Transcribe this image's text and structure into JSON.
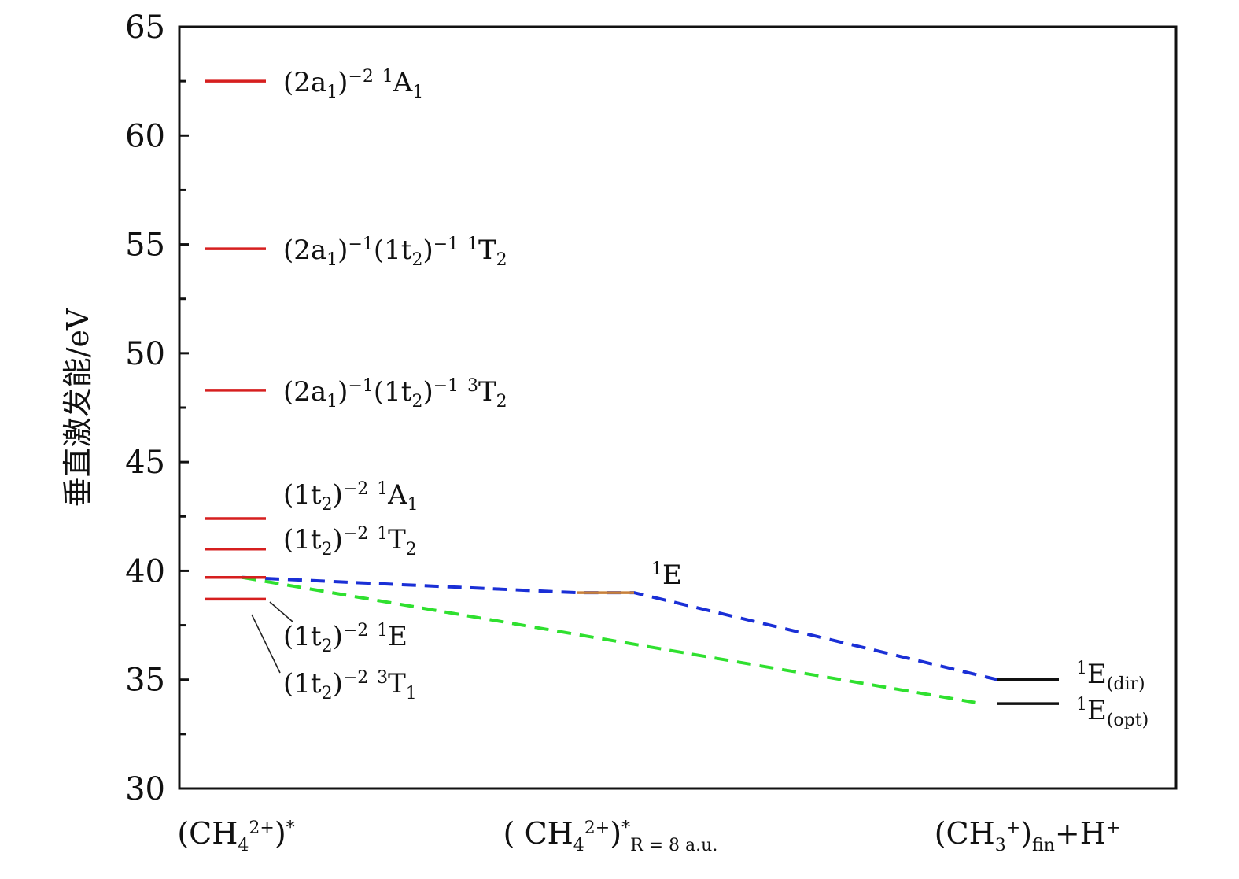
{
  "chart_data": {
    "type": "energy-level-diagram",
    "title": "",
    "ylabel": "垂直激发能/eV",
    "ylim": [
      30,
      65
    ],
    "yticks_major": [
      30,
      35,
      40,
      45,
      50,
      55,
      60,
      65
    ],
    "yticks_minor": [
      32.5,
      37.5,
      42.5,
      47.5,
      52.5,
      57.5,
      62.5
    ],
    "categories": [
      {
        "id": "c0",
        "main": "(CH",
        "sub": "4",
        "sup": "2+",
        "tail": ")",
        "sup2": "*",
        "sub2": ""
      },
      {
        "id": "c1",
        "main": "( CH",
        "sub": "4",
        "sup": "2+",
        "tail": ")",
        "sup2": "*",
        "sub2": "R = 8 a.u."
      },
      {
        "id": "c2",
        "main": "(CH",
        "sub": "3",
        "sup": "+",
        "tail": ")",
        "sup2": "",
        "sub2": "fin",
        "extra": "+H",
        "extra_sup": "+"
      }
    ],
    "levels": [
      {
        "id": "lv-2a1-m2-1A1",
        "col": 0,
        "energy": 62.5,
        "color": "#d61f1f",
        "label": [
          [
            "t",
            "(2a"
          ],
          [
            "sub",
            "1"
          ],
          [
            "t",
            ")"
          ],
          [
            "sup",
            "−2"
          ],
          [
            "t",
            " "
          ],
          [
            "sup",
            "1"
          ],
          [
            "t",
            "A"
          ],
          [
            "sub",
            "1"
          ]
        ]
      },
      {
        "id": "lv-2a1-1t2-1T2",
        "col": 0,
        "energy": 54.8,
        "color": "#d61f1f",
        "label": [
          [
            "t",
            "(2a"
          ],
          [
            "sub",
            "1"
          ],
          [
            "t",
            ")"
          ],
          [
            "sup",
            "−1"
          ],
          [
            "t",
            "(1t"
          ],
          [
            "sub",
            "2"
          ],
          [
            "t",
            ")"
          ],
          [
            "sup",
            "−1"
          ],
          [
            "t",
            " "
          ],
          [
            "sup",
            "1"
          ],
          [
            "t",
            "T"
          ],
          [
            "sub",
            "2"
          ]
        ]
      },
      {
        "id": "lv-2a1-1t2-3T2",
        "col": 0,
        "energy": 48.3,
        "color": "#d61f1f",
        "label": [
          [
            "t",
            "(2a"
          ],
          [
            "sub",
            "1"
          ],
          [
            "t",
            ")"
          ],
          [
            "sup",
            "−1"
          ],
          [
            "t",
            "(1t"
          ],
          [
            "sub",
            "2"
          ],
          [
            "t",
            ")"
          ],
          [
            "sup",
            "−1"
          ],
          [
            "t",
            " "
          ],
          [
            "sup",
            "3"
          ],
          [
            "t",
            "T"
          ],
          [
            "sub",
            "2"
          ]
        ]
      },
      {
        "id": "lv-1t2-1A1",
        "col": 0,
        "energy": 42.4,
        "color": "#d61f1f",
        "label": [
          [
            "t",
            "(1t"
          ],
          [
            "sub",
            "2"
          ],
          [
            "t",
            ")"
          ],
          [
            "sup",
            "−2"
          ],
          [
            "t",
            " "
          ],
          [
            "sup",
            "1"
          ],
          [
            "t",
            "A"
          ],
          [
            "sub",
            "1"
          ]
        ]
      },
      {
        "id": "lv-1t2-1T2",
        "col": 0,
        "energy": 41.0,
        "color": "#d61f1f",
        "label": [
          [
            "t",
            "(1t"
          ],
          [
            "sub",
            "2"
          ],
          [
            "t",
            ")"
          ],
          [
            "sup",
            "−2"
          ],
          [
            "t",
            " "
          ],
          [
            "sup",
            "1"
          ],
          [
            "t",
            "T"
          ],
          [
            "sub",
            "2"
          ]
        ]
      },
      {
        "id": "lv-1t2-1E",
        "col": 0,
        "energy": 39.7,
        "color": "#d61f1f",
        "label": [
          [
            "t",
            "(1t"
          ],
          [
            "sub",
            "2"
          ],
          [
            "t",
            ")"
          ],
          [
            "sup",
            "−2"
          ],
          [
            "t",
            " "
          ],
          [
            "sup",
            "1"
          ],
          [
            "t",
            "E"
          ]
        ]
      },
      {
        "id": "lv-1t2-3T1",
        "col": 0,
        "energy": 38.7,
        "color": "#d61f1f",
        "label": [
          [
            "t",
            "(1t"
          ],
          [
            "sub",
            "2"
          ],
          [
            "t",
            ")"
          ],
          [
            "sup",
            "−2"
          ],
          [
            "t",
            " "
          ],
          [
            "sup",
            "3"
          ],
          [
            "t",
            "T"
          ],
          [
            "sub",
            "1"
          ]
        ]
      },
      {
        "id": "lv-R8-1E",
        "col": 1,
        "energy": 39.0,
        "color": "#c8803a",
        "label": [
          [
            "sup",
            "1"
          ],
          [
            "t",
            "E"
          ]
        ]
      },
      {
        "id": "lv-fin-1E-dir",
        "col": 2,
        "energy": 35.0,
        "color": "#111111",
        "label": [
          [
            "sup",
            "1"
          ],
          [
            "t",
            "E"
          ],
          [
            "sub",
            "(dir)"
          ]
        ]
      },
      {
        "id": "lv-fin-1E-opt",
        "col": 2,
        "energy": 33.9,
        "color": "#111111",
        "label": [
          [
            "sup",
            "1"
          ],
          [
            "t",
            "E"
          ],
          [
            "sub",
            "(opt)"
          ]
        ]
      }
    ],
    "connectors": [
      {
        "id": "path-direct",
        "color": "#1a2fd6",
        "style": "dashed",
        "points": [
          [
            0,
            39.7
          ],
          [
            1,
            39.0
          ],
          [
            1,
            39.0
          ],
          [
            2,
            35.0
          ]
        ]
      },
      {
        "id": "path-optical",
        "color": "#2fe02f",
        "style": "dashed",
        "points": [
          [
            0,
            39.7
          ],
          [
            2,
            33.9
          ]
        ]
      }
    ]
  }
}
